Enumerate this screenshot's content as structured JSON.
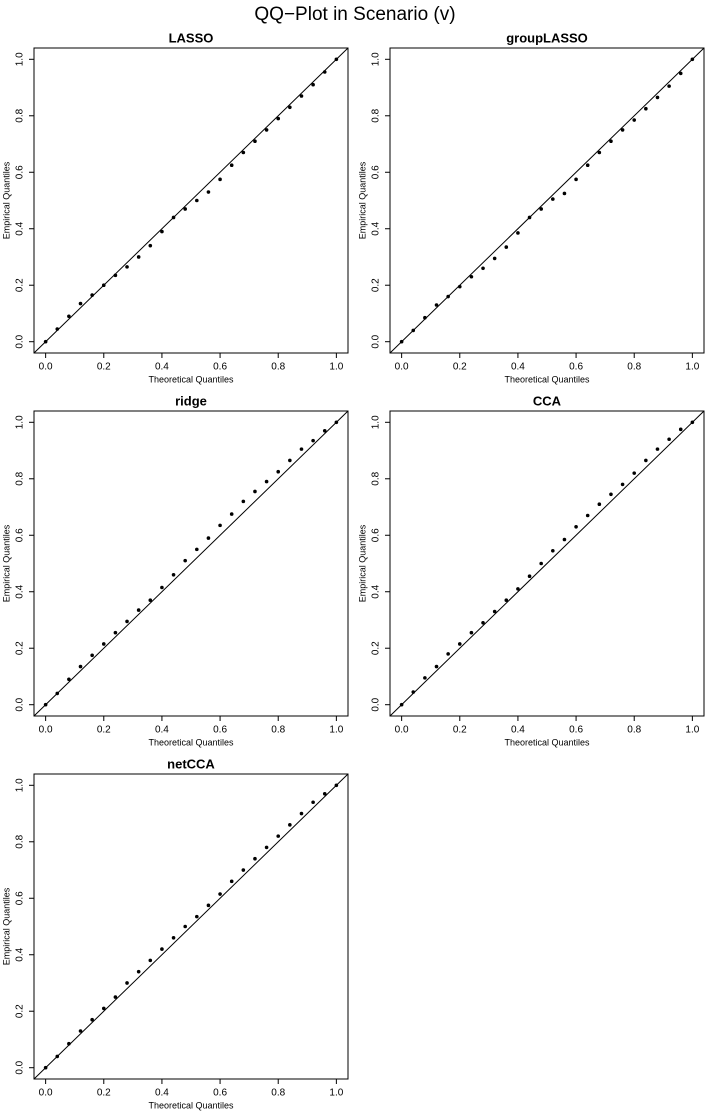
{
  "title": "QQ−Plot in Scenario (v)",
  "chart_data": [
    {
      "type": "scatter",
      "title": "LASSO",
      "x_label": "Theoretical Quantiles",
      "y_label": "Empirical Quantiles",
      "color": "#000000",
      "diagonal": true,
      "x": [
        0,
        0.04,
        0.08,
        0.12,
        0.16,
        0.2,
        0.24,
        0.28,
        0.32,
        0.36,
        0.4,
        0.44,
        0.48,
        0.52,
        0.56,
        0.6,
        0.64,
        0.68,
        0.72,
        0.76,
        0.8,
        0.84,
        0.88,
        0.92,
        0.96,
        1.0
      ],
      "values": [
        0,
        0.045,
        0.09,
        0.135,
        0.165,
        0.2,
        0.235,
        0.265,
        0.3,
        0.34,
        0.39,
        0.44,
        0.47,
        0.5,
        0.53,
        0.575,
        0.625,
        0.67,
        0.71,
        0.75,
        0.79,
        0.83,
        0.87,
        0.91,
        0.955,
        1.0
      ],
      "xlim": [
        -0.04,
        1.04
      ],
      "ylim": [
        -0.04,
        1.04
      ],
      "xticks": [
        {
          "value": 0,
          "label": "0.0"
        },
        0.2,
        0.4,
        0.6,
        0.8,
        {
          "value": 1,
          "label": "1.0"
        }
      ],
      "yticks": [
        {
          "value": 0,
          "label": "0.0"
        },
        0.2,
        0.4,
        0.6,
        0.8,
        {
          "value": 1,
          "label": "1.0"
        }
      ]
    },
    {
      "type": "scatter",
      "title": "groupLASSO",
      "x_label": "Theoretical Quantiles",
      "y_label": "Empirical Quantiles",
      "color": "#000000",
      "diagonal": true,
      "x": [
        0,
        0.04,
        0.08,
        0.12,
        0.16,
        0.2,
        0.24,
        0.28,
        0.32,
        0.36,
        0.4,
        0.44,
        0.48,
        0.52,
        0.56,
        0.6,
        0.64,
        0.68,
        0.72,
        0.76,
        0.8,
        0.84,
        0.88,
        0.92,
        0.96,
        1.0
      ],
      "values": [
        0,
        0.04,
        0.085,
        0.13,
        0.16,
        0.195,
        0.23,
        0.26,
        0.295,
        0.335,
        0.385,
        0.44,
        0.47,
        0.505,
        0.525,
        0.575,
        0.625,
        0.67,
        0.71,
        0.75,
        0.785,
        0.825,
        0.865,
        0.905,
        0.95,
        1.0
      ],
      "xlim": [
        -0.04,
        1.04
      ],
      "ylim": [
        -0.04,
        1.04
      ],
      "xticks": [
        {
          "value": 0,
          "label": "0.0"
        },
        0.2,
        0.4,
        0.6,
        0.8,
        {
          "value": 1,
          "label": "1.0"
        }
      ],
      "yticks": [
        {
          "value": 0,
          "label": "0.0"
        },
        0.2,
        0.4,
        0.6,
        0.8,
        {
          "value": 1,
          "label": "1.0"
        }
      ]
    },
    {
      "type": "scatter",
      "title": "ridge",
      "x_label": "Theoretical Quantiles",
      "y_label": "Empirical Quantiles",
      "color": "#000000",
      "diagonal": true,
      "x": [
        0,
        0.04,
        0.08,
        0.12,
        0.16,
        0.2,
        0.24,
        0.28,
        0.32,
        0.36,
        0.4,
        0.44,
        0.48,
        0.52,
        0.56,
        0.6,
        0.64,
        0.68,
        0.72,
        0.76,
        0.8,
        0.84,
        0.88,
        0.92,
        0.96,
        1.0
      ],
      "values": [
        0,
        0.04,
        0.09,
        0.135,
        0.175,
        0.215,
        0.255,
        0.295,
        0.335,
        0.37,
        0.415,
        0.46,
        0.51,
        0.55,
        0.59,
        0.635,
        0.675,
        0.72,
        0.755,
        0.79,
        0.825,
        0.865,
        0.905,
        0.935,
        0.97,
        1.0
      ],
      "xlim": [
        -0.04,
        1.04
      ],
      "ylim": [
        -0.04,
        1.04
      ],
      "xticks": [
        {
          "value": 0,
          "label": "0.0"
        },
        0.2,
        0.4,
        0.6,
        0.8,
        {
          "value": 1,
          "label": "1.0"
        }
      ],
      "yticks": [
        {
          "value": 0,
          "label": "0.0"
        },
        0.2,
        0.4,
        0.6,
        0.8,
        {
          "value": 1,
          "label": "1.0"
        }
      ]
    },
    {
      "type": "scatter",
      "title": "CCA",
      "x_label": "Theoretical Quantiles",
      "y_label": "Empirical Quantiles",
      "color": "#000000",
      "diagonal": true,
      "x": [
        0,
        0.04,
        0.08,
        0.12,
        0.16,
        0.2,
        0.24,
        0.28,
        0.32,
        0.36,
        0.4,
        0.44,
        0.48,
        0.52,
        0.56,
        0.6,
        0.64,
        0.68,
        0.72,
        0.76,
        0.8,
        0.84,
        0.88,
        0.92,
        0.96,
        1.0
      ],
      "values": [
        0,
        0.045,
        0.095,
        0.135,
        0.18,
        0.215,
        0.255,
        0.29,
        0.33,
        0.37,
        0.41,
        0.455,
        0.5,
        0.545,
        0.585,
        0.63,
        0.67,
        0.71,
        0.745,
        0.78,
        0.82,
        0.865,
        0.905,
        0.94,
        0.975,
        1.0
      ],
      "xlim": [
        -0.04,
        1.04
      ],
      "ylim": [
        -0.04,
        1.04
      ],
      "xticks": [
        {
          "value": 0,
          "label": "0.0"
        },
        0.2,
        0.4,
        0.6,
        0.8,
        {
          "value": 1,
          "label": "1.0"
        }
      ],
      "yticks": [
        {
          "value": 0,
          "label": "0.0"
        },
        0.2,
        0.4,
        0.6,
        0.8,
        {
          "value": 1,
          "label": "1.0"
        }
      ]
    },
    {
      "type": "scatter",
      "title": "netCCA",
      "x_label": "Theoretical Quantiles",
      "y_label": "Empirical Quantiles",
      "color": "#000000",
      "diagonal": true,
      "x": [
        0,
        0.04,
        0.08,
        0.12,
        0.16,
        0.2,
        0.24,
        0.28,
        0.32,
        0.36,
        0.4,
        0.44,
        0.48,
        0.52,
        0.56,
        0.6,
        0.64,
        0.68,
        0.72,
        0.76,
        0.8,
        0.84,
        0.88,
        0.92,
        0.96,
        1.0
      ],
      "values": [
        0,
        0.04,
        0.085,
        0.13,
        0.17,
        0.21,
        0.25,
        0.3,
        0.34,
        0.38,
        0.42,
        0.46,
        0.5,
        0.535,
        0.575,
        0.615,
        0.66,
        0.7,
        0.74,
        0.78,
        0.82,
        0.86,
        0.9,
        0.94,
        0.97,
        1.0
      ],
      "xlim": [
        -0.04,
        1.04
      ],
      "ylim": [
        -0.04,
        1.04
      ],
      "xticks": [
        {
          "value": 0,
          "label": "0.0"
        },
        0.2,
        0.4,
        0.6,
        0.8,
        {
          "value": 1,
          "label": "1.0"
        }
      ],
      "yticks": [
        {
          "value": 0,
          "label": "0.0"
        },
        0.2,
        0.4,
        0.6,
        0.8,
        {
          "value": 1,
          "label": "1.0"
        }
      ]
    }
  ]
}
